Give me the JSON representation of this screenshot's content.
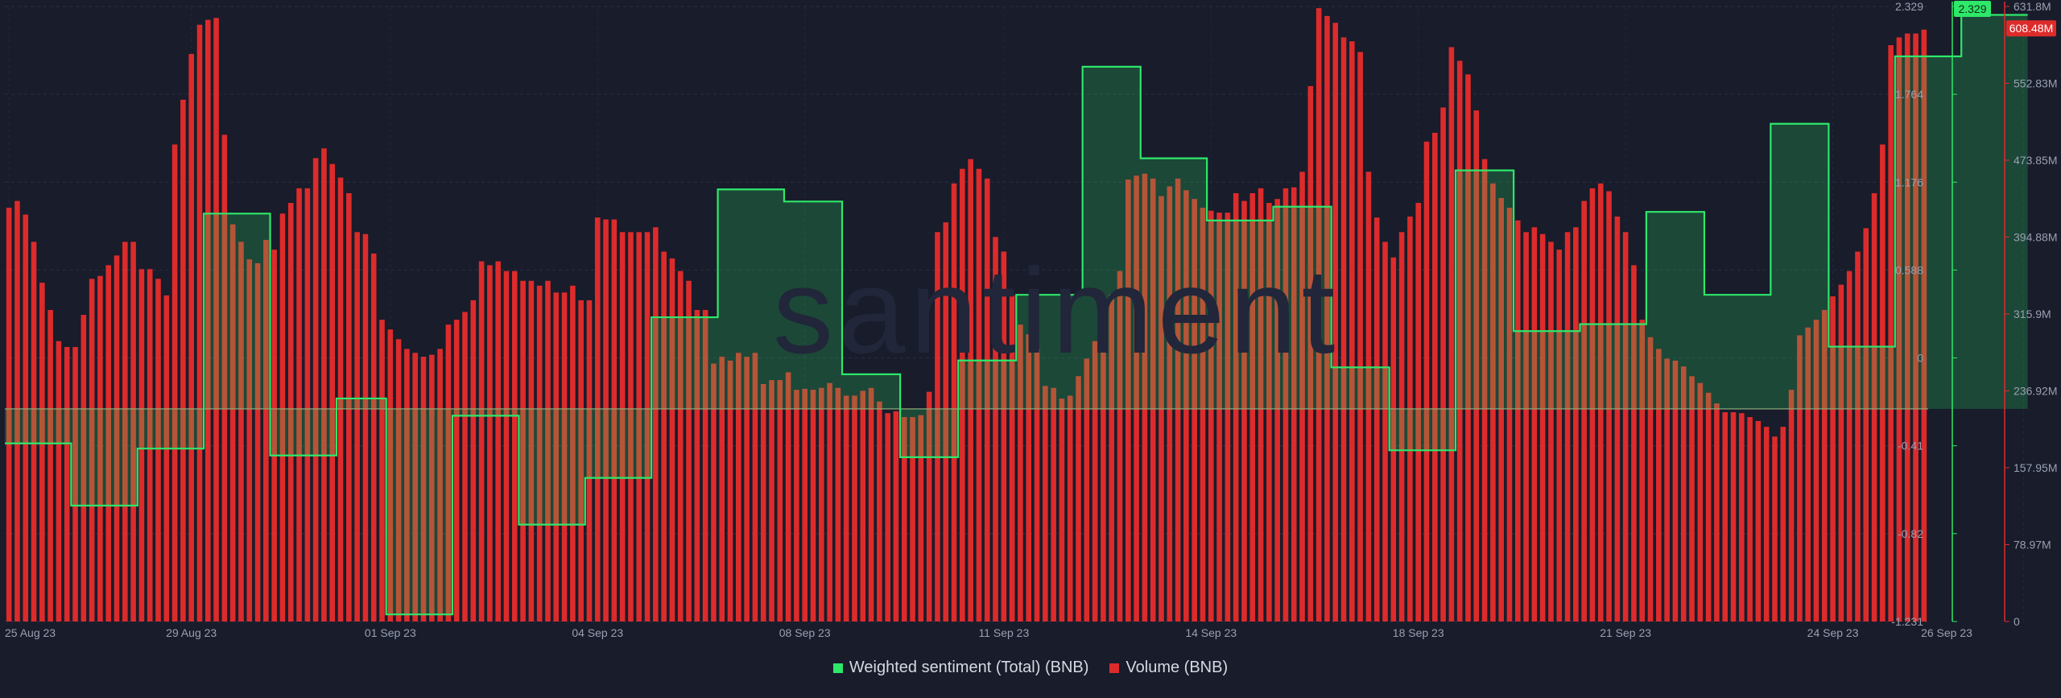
{
  "chart_data": {
    "type": "bar+line",
    "x_ticks": [
      "25 Aug 23",
      "29 Aug 23",
      "01 Sep 23",
      "04 Sep 23",
      "08 Sep 23",
      "11 Sep 23",
      "14 Sep 23",
      "18 Sep 23",
      "21 Sep 23",
      "24 Sep 23",
      "26 Sep 23"
    ],
    "left_axis_ticks": [
      "2.329",
      "1.764",
      "1.176",
      "0.588",
      "0",
      "-0.41",
      "-0.82",
      "-1.231"
    ],
    "right_axis_ticks": [
      "631.8M",
      "552.83M",
      "473.85M",
      "394.88M",
      "315.9M",
      "236.92M",
      "157.95M",
      "78.97M",
      "0"
    ],
    "sentiment_range": [
      -1.231,
      2.329
    ],
    "volume_range": [
      0,
      631.8
    ],
    "volume_unit": "M",
    "current_sentiment_label": "2.329",
    "current_volume_label": "608.48M",
    "series": [
      {
        "name": "Weighted sentiment (Total) (BNB)",
        "axis": "left",
        "type": "line",
        "color": "#2ee86a",
        "steps": [
          {
            "from": 0,
            "to": 8,
            "value": -0.2
          },
          {
            "from": 8,
            "to": 16,
            "value": -0.56
          },
          {
            "from": 16,
            "to": 24,
            "value": -0.23
          },
          {
            "from": 24,
            "to": 32,
            "value": 1.13
          },
          {
            "from": 32,
            "to": 40,
            "value": -0.27
          },
          {
            "from": 40,
            "to": 46,
            "value": 0.06
          },
          {
            "from": 46,
            "to": 54,
            "value": -1.19
          },
          {
            "from": 54,
            "to": 62,
            "value": -0.04
          },
          {
            "from": 62,
            "to": 70,
            "value": -0.67
          },
          {
            "from": 70,
            "to": 78,
            "value": -0.4
          },
          {
            "from": 78,
            "to": 86,
            "value": 0.53
          },
          {
            "from": 86,
            "to": 94,
            "value": 1.27
          },
          {
            "from": 94,
            "to": 101,
            "value": 1.2
          },
          {
            "from": 101,
            "to": 108,
            "value": 0.2
          },
          {
            "from": 108,
            "to": 115,
            "value": -0.28
          },
          {
            "from": 115,
            "to": 122,
            "value": 0.28
          },
          {
            "from": 122,
            "to": 130,
            "value": 0.66
          },
          {
            "from": 130,
            "to": 137,
            "value": 1.98
          },
          {
            "from": 137,
            "to": 145,
            "value": 1.45
          },
          {
            "from": 145,
            "to": 153,
            "value": 1.09
          },
          {
            "from": 153,
            "to": 160,
            "value": 1.17
          },
          {
            "from": 160,
            "to": 167,
            "value": 0.24
          },
          {
            "from": 167,
            "to": 175,
            "value": -0.24
          },
          {
            "from": 175,
            "to": 182,
            "value": 1.38
          },
          {
            "from": 182,
            "to": 190,
            "value": 0.45
          },
          {
            "from": 190,
            "to": 198,
            "value": 0.49
          },
          {
            "from": 198,
            "to": 205,
            "value": 1.14
          },
          {
            "from": 205,
            "to": 213,
            "value": 0.66
          },
          {
            "from": 213,
            "to": 220,
            "value": 1.65
          },
          {
            "from": 220,
            "to": 228,
            "value": 0.36
          },
          {
            "from": 228,
            "to": 236,
            "value": 2.04
          },
          {
            "from": 236,
            "to": 244,
            "value": 2.28
          }
        ]
      },
      {
        "name": "Volume (BNB)",
        "axis": "right",
        "type": "bar",
        "color": "#dd2b2b",
        "values": [
          425,
          432,
          418,
          390,
          348,
          320,
          288,
          282,
          282,
          315,
          352,
          355,
          366,
          376,
          390,
          390,
          362,
          362,
          352,
          335,
          490,
          536,
          583,
          613,
          618,
          620,
          500,
          408,
          390,
          372,
          368,
          392,
          382,
          419,
          430,
          445,
          445,
          476,
          486,
          470,
          456,
          440,
          400,
          398,
          378,
          310,
          300,
          290,
          280,
          276,
          272,
          274,
          280,
          305,
          310,
          318,
          330,
          370,
          366,
          370,
          360,
          360,
          350,
          350,
          345,
          350,
          338,
          338,
          345,
          330,
          330,
          415,
          413,
          413,
          400,
          400,
          400,
          400,
          405,
          380,
          373,
          360,
          350,
          320,
          320,
          265,
          272,
          268,
          276,
          272,
          276,
          244,
          248,
          248,
          256,
          238,
          239,
          238,
          240,
          245,
          240,
          232,
          232,
          237,
          240,
          226,
          214,
          216,
          210,
          210,
          212,
          236,
          400,
          410,
          450,
          465,
          475,
          465,
          455,
          395,
          380,
          335,
          305,
          295,
          280,
          242,
          240,
          229,
          232,
          252,
          270,
          288,
          315,
          336,
          360,
          454,
          458,
          460,
          455,
          437,
          447,
          455,
          443,
          434,
          425,
          422,
          420,
          420,
          440,
          432,
          440,
          445,
          430,
          434,
          445,
          446,
          462,
          550,
          630,
          622,
          615,
          600,
          596,
          585,
          462,
          415,
          390,
          374,
          400,
          416,
          430,
          493,
          502,
          528,
          590,
          576,
          562,
          525,
          475,
          450,
          435,
          425,
          412,
          400,
          405,
          398,
          390,
          382,
          400,
          405,
          432,
          445,
          450,
          442,
          416,
          400,
          366,
          310,
          292,
          280,
          270,
          268,
          262,
          252,
          245,
          235,
          224,
          215,
          215,
          214,
          210,
          206,
          200,
          190,
          200,
          238,
          294,
          302,
          310,
          320,
          334,
          346,
          360,
          380,
          404,
          440,
          490,
          592,
          600,
          604,
          604,
          608
        ]
      }
    ],
    "grid": true,
    "legend_position": "bottom-center",
    "watermark": "santiment"
  }
}
